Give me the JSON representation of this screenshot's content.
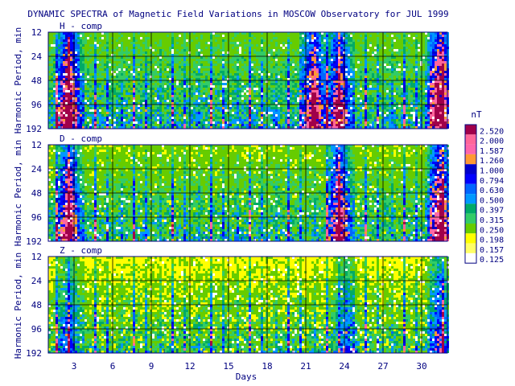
{
  "chart_data": {
    "type": "heatmap",
    "title": "DYNAMIC SPECTRA of Magnetic Field Variations in MOSCOW Observatory for JUL 1999",
    "xlabel": "Days",
    "ylabel": "Harmonic Period, min",
    "x_ticks": [
      "3",
      "6",
      "9",
      "12",
      "15",
      "18",
      "21",
      "24",
      "27",
      "30"
    ],
    "x_tick_values": [
      3,
      6,
      9,
      12,
      15,
      18,
      21,
      24,
      27,
      30
    ],
    "xlim": [
      1,
      32
    ],
    "y_ticks": [
      "12",
      "24",
      "48",
      "96",
      "192"
    ],
    "y_tick_values": [
      12,
      24,
      48,
      96,
      192
    ],
    "ylim": [
      12,
      192
    ],
    "y_scale": "log",
    "grid": true,
    "panels": [
      {
        "label": "H - comp",
        "active_days": [
          {
            "day": 2.5,
            "strength": 1.0
          },
          {
            "day": 21.5,
            "strength": 0.85
          },
          {
            "day": 23.5,
            "strength": 0.8
          },
          {
            "day": 31.3,
            "strength": 1.0
          }
        ]
      },
      {
        "label": "D - comp",
        "active_days": [
          {
            "day": 2.5,
            "strength": 0.9
          },
          {
            "day": 23.5,
            "strength": 0.85
          },
          {
            "day": 31.3,
            "strength": 0.95
          }
        ]
      },
      {
        "label": "Z - comp",
        "active_days": [
          {
            "day": 2.5,
            "strength": 0.45
          },
          {
            "day": 24.0,
            "strength": 0.4
          },
          {
            "day": 31.3,
            "strength": 0.55
          }
        ]
      }
    ],
    "colorbar": {
      "unit": "nT",
      "levels": [
        "2.520",
        "2.000",
        "1.587",
        "1.260",
        "1.000",
        "0.794",
        "0.630",
        "0.500",
        "0.397",
        "0.315",
        "0.250",
        "0.198",
        "0.157",
        "0.125"
      ],
      "colors": [
        "#a0004a",
        "#ff6699",
        "#ff66aa",
        "#ff9933",
        "#0000cc",
        "#0000ff",
        "#0066ff",
        "#0099ff",
        "#00aa66",
        "#33cc66",
        "#66cc00",
        "#ffff00",
        "#ffff66",
        "#ffffff"
      ]
    }
  }
}
